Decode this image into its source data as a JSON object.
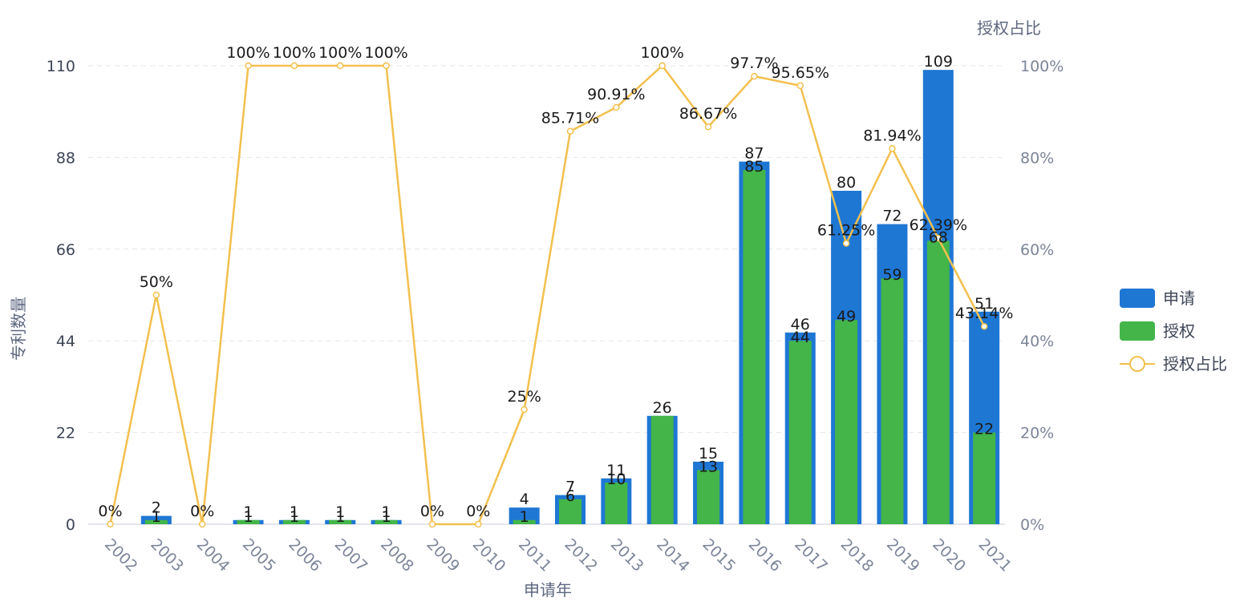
{
  "chart_data": {
    "type": "bar",
    "categories": [
      "2002",
      "2003",
      "2004",
      "2005",
      "2006",
      "2007",
      "2008",
      "2009",
      "2010",
      "2011",
      "2012",
      "2013",
      "2014",
      "2015",
      "2016",
      "2017",
      "2018",
      "2019",
      "2020",
      "2021"
    ],
    "series": [
      {
        "name": "申请",
        "type": "bar",
        "color": "#1f77d4",
        "values": [
          0,
          2,
          0,
          1,
          1,
          1,
          1,
          0,
          0,
          4,
          7,
          11,
          26,
          15,
          87,
          46,
          80,
          72,
          109,
          51
        ],
        "labels": [
          "",
          "2",
          "",
          "1",
          "1",
          "1",
          "1",
          "",
          "",
          "4",
          "7",
          "11",
          "26",
          "15",
          "87",
          "46",
          "80",
          "72",
          "109",
          "51"
        ]
      },
      {
        "name": "授权",
        "type": "bar",
        "color": "#43b549",
        "values": [
          0,
          1,
          0,
          1,
          1,
          1,
          1,
          0,
          0,
          1,
          6,
          10,
          26,
          13,
          85,
          44,
          49,
          59,
          68,
          22
        ],
        "labels": [
          "",
          "1",
          "",
          "1",
          "1",
          "1",
          "1",
          "",
          "",
          "1",
          "6",
          "10",
          "",
          "13",
          "85",
          "44",
          "49",
          "59",
          "68",
          "22"
        ]
      },
      {
        "name": "授权占比",
        "type": "line",
        "color": "#f2c04e",
        "axis": "right",
        "values": [
          0,
          50,
          0,
          100,
          100,
          100,
          100,
          0,
          0,
          25,
          85.71,
          90.91,
          100,
          86.67,
          97.7,
          95.65,
          61.25,
          81.94,
          62.39,
          43.14
        ],
        "labels": [
          "0%",
          "50%",
          "0%",
          "100%",
          "100%",
          "100%",
          "100%",
          "0%",
          "0%",
          "25%",
          "85.71%",
          "90.91%",
          "100%",
          "86.67%",
          "97.7%",
          "95.65%",
          "61.25%",
          "81.94%",
          "62.39%",
          "43.14%"
        ]
      }
    ],
    "xlabel": "申请年",
    "ylabel": "专利数量",
    "y2label": "授权占比",
    "ylim": [
      0,
      110
    ],
    "y2lim": [
      0,
      100
    ],
    "yticks": [
      "0",
      "22",
      "44",
      "66",
      "88",
      "110"
    ],
    "y2ticks": [
      "0%",
      "20%",
      "40%",
      "60%",
      "80%",
      "100%"
    ],
    "grid": true,
    "legend_position": "right"
  }
}
